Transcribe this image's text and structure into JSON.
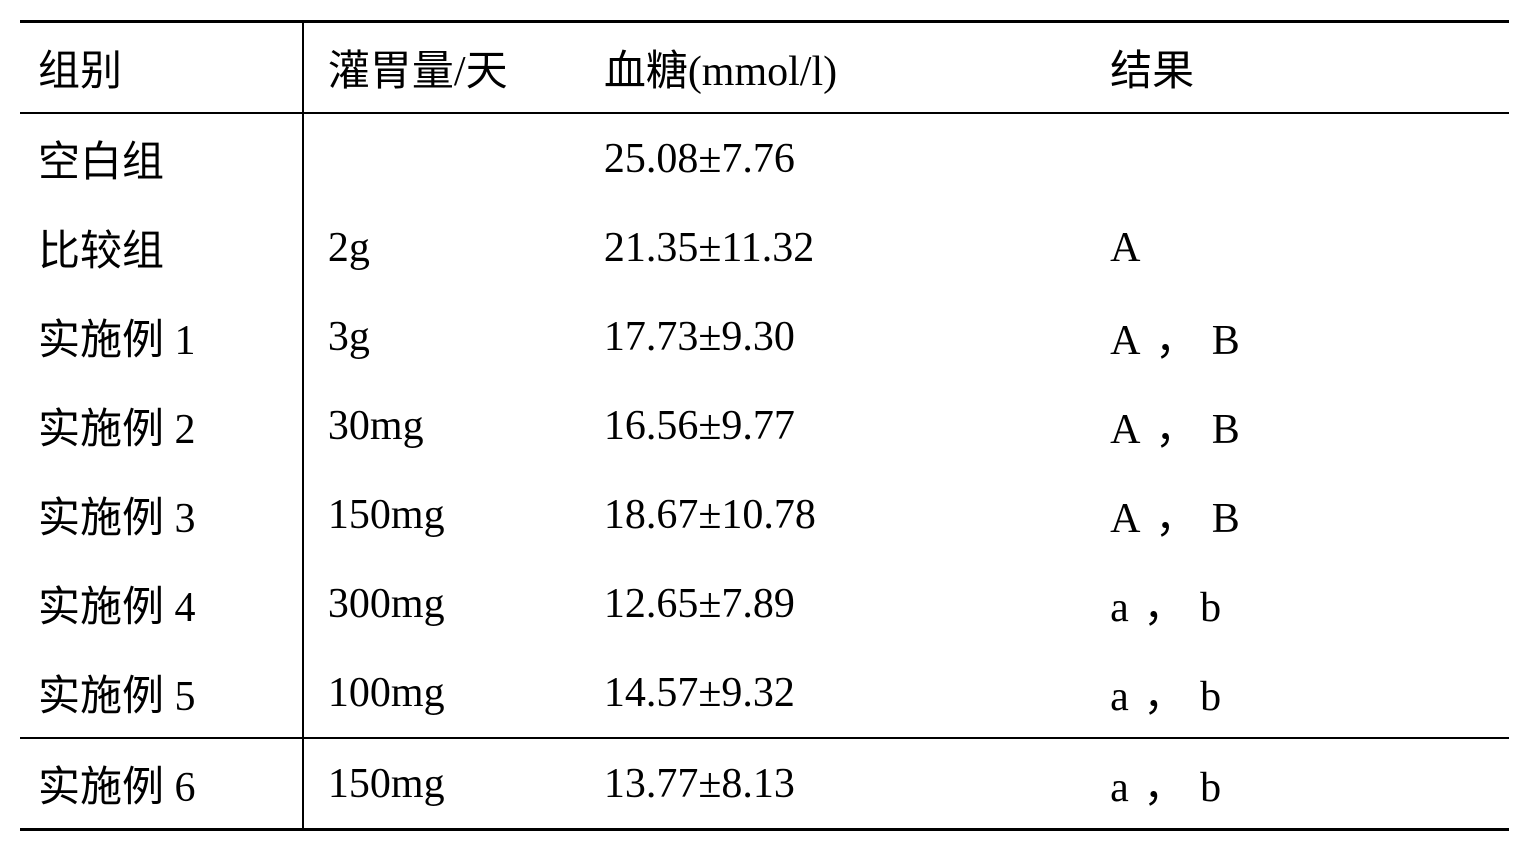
{
  "table": {
    "type": "table",
    "text_color": "#000000",
    "background_color": "#ffffff",
    "border_color": "#000000",
    "font_size_pt": 32,
    "columns": [
      {
        "key": "group",
        "label": "组别",
        "width_pct": 19,
        "align": "left"
      },
      {
        "key": "dose",
        "label": "灌胃量/天",
        "width_pct": 19,
        "align": "left"
      },
      {
        "key": "glucose",
        "label": "血糖(mmol/l)",
        "width_pct": 34,
        "align": "left"
      },
      {
        "key": "result",
        "label": "结果",
        "width_pct": 28,
        "align": "left"
      }
    ],
    "rows": [
      {
        "group": "空白组",
        "dose": "",
        "glucose": "25.08±7.76",
        "result": ""
      },
      {
        "group": "比较组",
        "dose": "2g",
        "glucose": "21.35±11.32",
        "result": "A"
      },
      {
        "group": "实施例 1",
        "dose": "3g",
        "glucose": "17.73±9.30",
        "result": "A，B"
      },
      {
        "group": "实施例 2",
        "dose": "30mg",
        "glucose": "16.56±9.77",
        "result": "A，B"
      },
      {
        "group": "实施例 3",
        "dose": "150mg",
        "glucose": "18.67±10.78",
        "result": "A，B"
      },
      {
        "group": "实施例 4",
        "dose": "300mg",
        "glucose": "12.65±7.89",
        "result": "a，b"
      },
      {
        "group": "实施例 5",
        "dose": "100mg",
        "glucose": "14.57±9.32",
        "result": "a，b"
      }
    ],
    "foot_row": {
      "group": "实施例 6",
      "dose": "150mg",
      "glucose": "13.77±8.13",
      "result": "a，b"
    }
  }
}
